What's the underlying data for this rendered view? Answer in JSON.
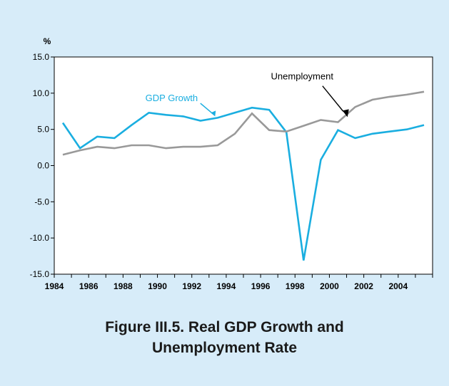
{
  "chart_data": {
    "type": "line",
    "title": "",
    "xlabel": "",
    "ylabel": "%",
    "ylim": [
      -15,
      15
    ],
    "xlim": [
      1984,
      2006
    ],
    "yticks": [
      "15.0",
      "10.0",
      "5.0",
      "0.0",
      "-5.0",
      "-10.0",
      "-15.0"
    ],
    "xticks": [
      "1984",
      "1986",
      "1988",
      "1990",
      "1992",
      "1994",
      "1996",
      "1998",
      "2000",
      "2002",
      "2004"
    ],
    "grid": false,
    "series": [
      {
        "name": "GDP Growth",
        "color": "#1aaee0",
        "x": [
          1984.5,
          1985.5,
          1986.5,
          1987.5,
          1988.5,
          1989.5,
          1990.5,
          1991.5,
          1992.5,
          1993.5,
          1994.5,
          1995.5,
          1996.5,
          1997.5,
          1998.5,
          1999.5,
          2000.5,
          2001.5,
          2002.5,
          2003.5,
          2004.5,
          2005.5
        ],
        "values": [
          5.9,
          2.4,
          4.0,
          3.8,
          5.6,
          7.3,
          7.0,
          6.8,
          6.2,
          6.6,
          7.3,
          8.0,
          7.7,
          4.6,
          -13.1,
          0.8,
          4.9,
          3.8,
          4.4,
          4.7,
          5.0,
          5.6
        ]
      },
      {
        "name": "Unemployment",
        "color": "#999999",
        "x": [
          1984.5,
          1985.5,
          1986.5,
          1987.5,
          1988.5,
          1989.5,
          1990.5,
          1991.5,
          1992.5,
          1993.5,
          1994.5,
          1995.5,
          1996.5,
          1997.5,
          1998.5,
          1999.5,
          2000.5,
          2001.5,
          2002.5,
          2003.5,
          2004.5,
          2005.5
        ],
        "values": [
          1.5,
          2.1,
          2.6,
          2.4,
          2.8,
          2.8,
          2.4,
          2.6,
          2.6,
          2.8,
          4.4,
          7.2,
          4.9,
          4.7,
          5.5,
          6.3,
          6.0,
          8.1,
          9.1,
          9.5,
          9.8,
          10.2
        ]
      }
    ],
    "annotations": [
      {
        "text": "GDP Growth",
        "points_to": "GDP Growth"
      },
      {
        "text": "Unemployment",
        "points_to": "Unemployment"
      }
    ]
  },
  "caption": {
    "line1": "Figure III.5. Real GDP Growth and",
    "line2": "Unemployment Rate"
  }
}
